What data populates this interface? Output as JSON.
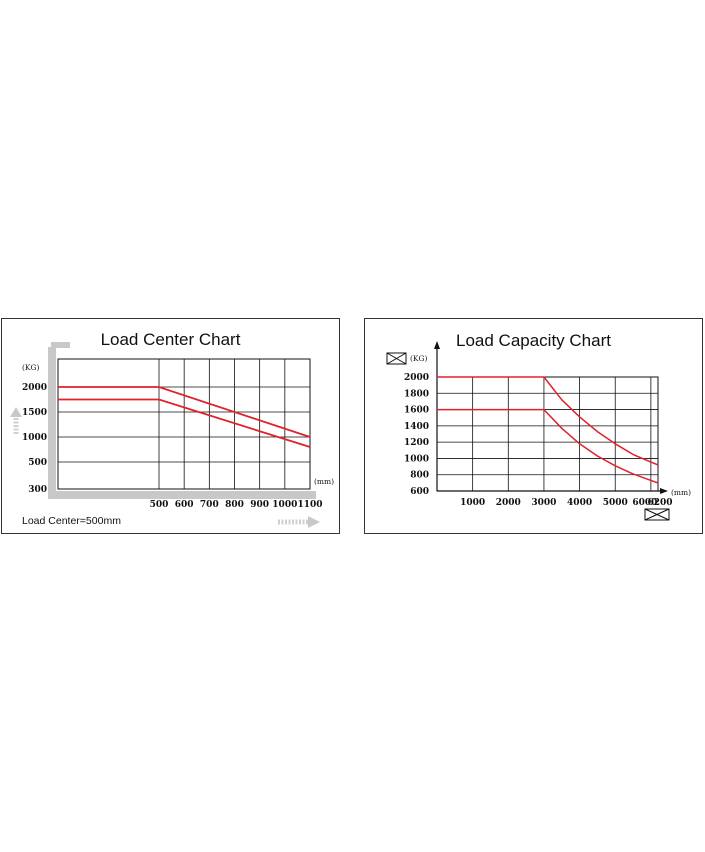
{
  "chart_data": [
    {
      "type": "line",
      "title": "Load Center Chart",
      "ylabel": "(KG)",
      "xlabel": "(mm)",
      "ylim": [
        300,
        2000
      ],
      "xlim": [
        500,
        1100
      ],
      "y_ticks": [
        "2000",
        "1500",
        "1000",
        "500",
        "300"
      ],
      "x_ticks": [
        "500",
        "600",
        "700",
        "800",
        "900",
        "1000",
        "1100"
      ],
      "footnote": "Load Center=500mm",
      "grid": true,
      "series": [
        {
          "color": "#e0202a",
          "x": [
            500,
            1100
          ],
          "y": [
            2000,
            1000
          ]
        },
        {
          "color": "#e0202a",
          "x": [
            500,
            1100
          ],
          "y": [
            1750,
            800
          ]
        }
      ]
    },
    {
      "type": "line",
      "title": "Load Capacity Chart",
      "ylabel": "(KG)",
      "xlabel": "(mm)",
      "ylim": [
        600,
        2000
      ],
      "xlim": [
        0,
        6200
      ],
      "y_ticks": [
        "2000",
        "1800",
        "1600",
        "1400",
        "1200",
        "1000",
        "800",
        "600"
      ],
      "x_ticks": [
        "1000",
        "2000",
        "3000",
        "4000",
        "5000",
        "6000",
        "6200"
      ],
      "grid": true,
      "series": [
        {
          "color": "#e0202a",
          "x": [
            0,
            3000,
            3500,
            4000,
            4500,
            5000,
            5500,
            6000,
            6200
          ],
          "y": [
            2000,
            2000,
            1720,
            1510,
            1330,
            1180,
            1050,
            955,
            920
          ]
        },
        {
          "color": "#e0202a",
          "x": [
            0,
            3000,
            3500,
            4000,
            4500,
            5000,
            5500,
            6000,
            6200
          ],
          "y": [
            1600,
            1600,
            1370,
            1180,
            1030,
            910,
            810,
            730,
            700
          ]
        }
      ]
    }
  ]
}
